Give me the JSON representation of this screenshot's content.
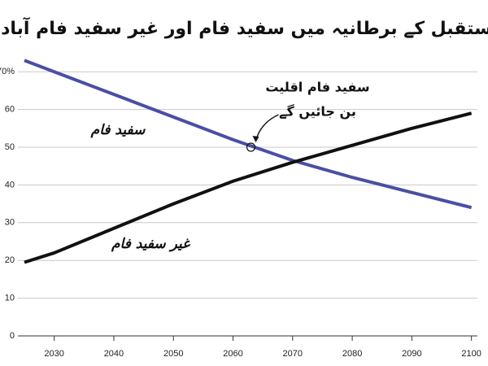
{
  "chart_data": {
    "type": "line",
    "title": "مستقبل کے برطانیہ میں سفید فام اور غیر سفید فام آبادی",
    "x": [
      2025,
      2030,
      2040,
      2050,
      2060,
      2070,
      2080,
      2090,
      2100
    ],
    "series": [
      {
        "name": "سفید فام",
        "color": "#4a4fa3",
        "values": [
          73,
          70,
          64,
          58,
          52,
          46.5,
          42,
          38,
          34
        ]
      },
      {
        "name": "غیر سفید فام",
        "color": "#111111",
        "values": [
          19.5,
          22,
          28.5,
          35,
          41,
          46,
          50.5,
          55,
          59
        ]
      }
    ],
    "annotation": {
      "text": [
        "سفید فام اقلیت",
        "بن جائیں گے"
      ],
      "x": 2063,
      "y": 50
    },
    "xlim": [
      2025,
      2101
    ],
    "xticks": [
      2030,
      2040,
      2050,
      2060,
      2070,
      2080,
      2090,
      2100
    ],
    "ylim": [
      0,
      75
    ],
    "yticks": [
      0,
      10,
      20,
      30,
      40,
      50,
      60,
      {
        "value": 70,
        "label": "70%"
      }
    ],
    "grid": true
  }
}
